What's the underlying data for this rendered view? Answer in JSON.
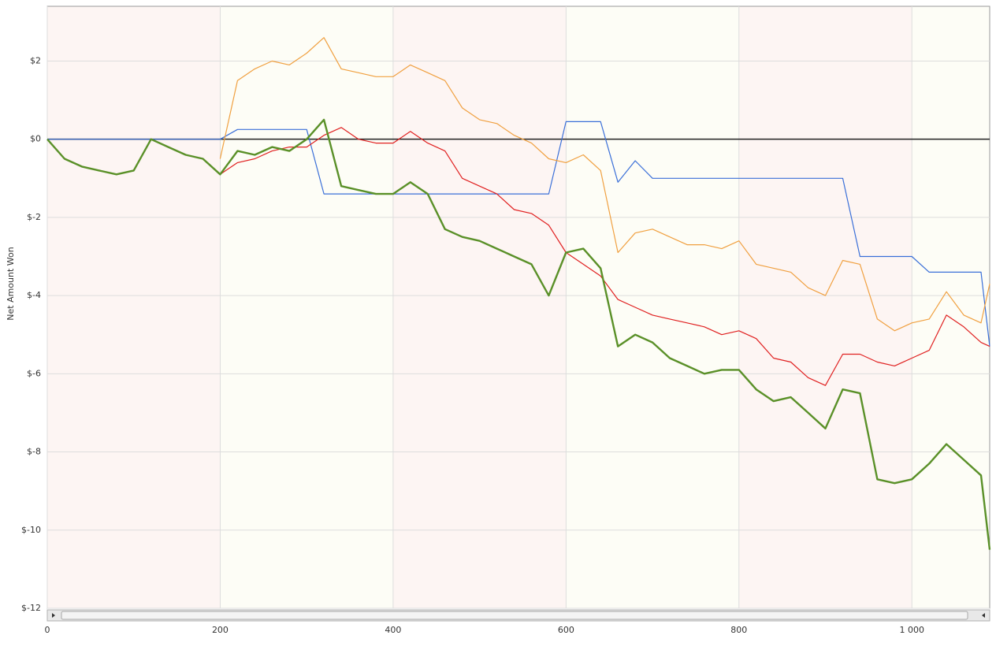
{
  "chart_data": {
    "type": "line",
    "y_label": "Net Amount Won",
    "x": [
      0,
      20,
      40,
      60,
      80,
      100,
      120,
      140,
      160,
      180,
      200,
      220,
      240,
      260,
      280,
      300,
      320,
      340,
      360,
      380,
      400,
      420,
      440,
      460,
      480,
      500,
      520,
      540,
      560,
      580,
      600,
      620,
      640,
      660,
      680,
      700,
      720,
      740,
      760,
      780,
      800,
      820,
      840,
      860,
      880,
      900,
      920,
      940,
      960,
      980,
      1000,
      1020,
      1040,
      1060,
      1080,
      1090
    ],
    "series": [
      {
        "color": "#3a6fd8",
        "width": 1.2,
        "values": [
          0,
          0,
          0,
          0,
          0,
          0,
          0,
          0,
          0,
          0,
          0,
          0.25,
          0.25,
          0.25,
          0.25,
          0.25,
          -1.4,
          -1.4,
          -1.4,
          -1.4,
          -1.4,
          -1.4,
          -1.4,
          -1.4,
          -1.4,
          -1.4,
          -1.4,
          -1.4,
          -1.4,
          -1.4,
          0.45,
          0.45,
          0.45,
          -1.1,
          -0.55,
          -1.0,
          -1.0,
          -1.0,
          -1.0,
          -1.0,
          -1.0,
          -1.0,
          -1.0,
          -1.0,
          -1.0,
          -1.0,
          -1.0,
          -3.0,
          -3.0,
          -3.0,
          -3.0,
          -3.4,
          -3.4,
          -3.4,
          -3.4,
          -5.3
        ]
      },
      {
        "color": "#f0a040",
        "width": 1.2,
        "values": [
          null,
          null,
          null,
          null,
          null,
          null,
          null,
          null,
          null,
          null,
          -0.5,
          1.5,
          1.8,
          2.0,
          1.9,
          2.2,
          2.6,
          1.8,
          1.7,
          1.6,
          1.6,
          1.9,
          1.7,
          1.5,
          0.8,
          0.5,
          0.4,
          0.1,
          -0.1,
          -0.5,
          -0.6,
          -0.4,
          -0.8,
          -2.9,
          -2.4,
          -2.3,
          -2.5,
          -2.7,
          -2.7,
          -2.8,
          -2.6,
          -3.2,
          -3.3,
          -3.4,
          -3.8,
          -4.0,
          -3.1,
          -3.2,
          -4.6,
          -4.9,
          -4.7,
          -4.6,
          -3.9,
          -4.5,
          -4.7,
          -3.7
        ]
      },
      {
        "color": "#e02020",
        "width": 1.2,
        "values": [
          null,
          null,
          null,
          null,
          null,
          null,
          null,
          null,
          null,
          null,
          -0.9,
          -0.6,
          -0.5,
          -0.3,
          -0.2,
          -0.2,
          0.1,
          0.3,
          0,
          -0.1,
          -0.1,
          0.2,
          -0.1,
          -0.3,
          -1.0,
          -1.2,
          -1.4,
          -1.8,
          -1.9,
          -2.2,
          -2.9,
          -3.2,
          -3.5,
          -4.1,
          -4.3,
          -4.5,
          -4.6,
          -4.7,
          -4.8,
          -5.0,
          -4.9,
          -5.1,
          -5.6,
          -5.7,
          -6.1,
          -6.3,
          -5.5,
          -5.5,
          -5.7,
          -5.8,
          -5.6,
          -5.4,
          -4.5,
          -4.8,
          -5.2,
          -5.3
        ]
      },
      {
        "color": "#5a9028",
        "width": 2.4,
        "values": [
          0,
          -0.5,
          -0.7,
          -0.8,
          -0.9,
          -0.8,
          0,
          -0.2,
          -0.4,
          -0.5,
          -0.9,
          -0.3,
          -0.4,
          -0.2,
          -0.3,
          0,
          0.5,
          -1.2,
          -1.3,
          -1.4,
          -1.4,
          -1.1,
          -1.4,
          -2.3,
          -2.5,
          -2.6,
          -2.8,
          -3.0,
          -3.2,
          -4.0,
          -2.9,
          -2.8,
          -3.3,
          -5.3,
          -5.0,
          -5.2,
          -5.6,
          -5.8,
          -6.0,
          -5.9,
          -5.9,
          -6.4,
          -6.7,
          -6.6,
          -7.0,
          -7.4,
          -6.4,
          -6.5,
          -8.7,
          -8.8,
          -8.7,
          -8.3,
          -7.8,
          -8.2,
          -8.6,
          -10.5
        ]
      }
    ],
    "xlim": [
      0,
      1090
    ],
    "xticks": [
      0,
      200,
      400,
      600,
      800,
      {
        "value": 1000,
        "label": "1 000"
      }
    ],
    "ylim": [
      -12,
      3.4
    ],
    "yticks": [
      {
        "value": -12,
        "label": "$-12"
      },
      {
        "value": -10,
        "label": "$-10"
      },
      {
        "value": -8,
        "label": "$-8"
      },
      {
        "value": -6,
        "label": "$-6"
      },
      {
        "value": -4,
        "label": "$-4"
      },
      {
        "value": -2,
        "label": "$-2"
      },
      {
        "value": 0,
        "label": "$0"
      },
      {
        "value": 2,
        "label": "$2"
      }
    ],
    "grid": true
  }
}
